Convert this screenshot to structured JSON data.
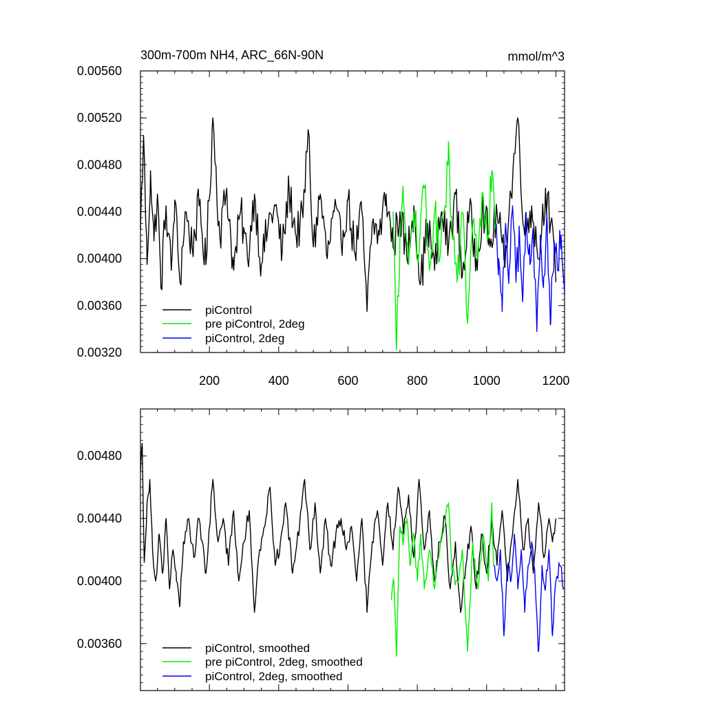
{
  "chart_data": [
    {
      "type": "line",
      "title": "300m-700m NH4, ARC_66N-90N",
      "units": "mmol/m^3",
      "xlim": [
        1,
        1225
      ],
      "ylim": [
        0.0032,
        0.0056
      ],
      "xticks": [
        "200",
        "400",
        "600",
        "800",
        "1000",
        "1200"
      ],
      "yticks": [
        "0.00560",
        "0.00520",
        "0.00480",
        "0.00440",
        "0.00400",
        "0.00360",
        "0.00320"
      ],
      "legend": [
        "piControl",
        "pre piControl, 2deg",
        "piControl, 2deg"
      ],
      "legend_position": "bottom-left",
      "series": [
        {
          "name": "piControl",
          "color": "#000000",
          "x_start": 1,
          "x_end": 1200,
          "points": [
            [
              1,
              0.00425
            ],
            [
              10,
              0.00505
            ],
            [
              20,
              0.00395
            ],
            [
              30,
              0.00475
            ],
            [
              40,
              0.00415
            ],
            [
              50,
              0.00455
            ],
            [
              60,
              0.00375
            ],
            [
              75,
              0.00445
            ],
            [
              90,
              0.0039
            ],
            [
              100,
              0.0045
            ],
            [
              115,
              0.0038
            ],
            [
              130,
              0.0044
            ],
            [
              150,
              0.0041
            ],
            [
              170,
              0.00445
            ],
            [
              190,
              0.00395
            ],
            [
              210,
              0.0052
            ],
            [
              230,
              0.0042
            ],
            [
              250,
              0.0046
            ],
            [
              270,
              0.0039
            ],
            [
              290,
              0.0044
            ],
            [
              310,
              0.004
            ],
            [
              330,
              0.00455
            ],
            [
              350,
              0.00395
            ],
            [
              370,
              0.0043
            ],
            [
              390,
              0.00445
            ],
            [
              410,
              0.00405
            ],
            [
              430,
              0.0046
            ],
            [
              450,
              0.0042
            ],
            [
              470,
              0.00435
            ],
            [
              485,
              0.0051
            ],
            [
              500,
              0.0041
            ],
            [
              520,
              0.00455
            ],
            [
              540,
              0.004
            ],
            [
              560,
              0.0044
            ],
            [
              580,
              0.00415
            ],
            [
              600,
              0.0045
            ],
            [
              620,
              0.00405
            ],
            [
              640,
              0.0044
            ],
            [
              655,
              0.00355
            ],
            [
              670,
              0.0043
            ],
            [
              690,
              0.0042
            ],
            [
              710,
              0.00455
            ],
            [
              730,
              0.0041
            ],
            [
              750,
              0.0044
            ],
            [
              770,
              0.004
            ],
            [
              790,
              0.00445
            ],
            [
              810,
              0.0038
            ],
            [
              830,
              0.0043
            ],
            [
              850,
              0.0039
            ],
            [
              870,
              0.0044
            ],
            [
              890,
              0.0041
            ],
            [
              910,
              0.00455
            ],
            [
              930,
              0.00385
            ],
            [
              950,
              0.0044
            ],
            [
              970,
              0.004
            ],
            [
              990,
              0.00445
            ],
            [
              1010,
              0.0041
            ],
            [
              1030,
              0.0044
            ],
            [
              1050,
              0.004
            ],
            [
              1070,
              0.00455
            ],
            [
              1090,
              0.0052
            ],
            [
              1110,
              0.0042
            ],
            [
              1130,
              0.00445
            ],
            [
              1150,
              0.004
            ],
            [
              1170,
              0.0046
            ],
            [
              1185,
              0.0043
            ],
            [
              1200,
              0.0038
            ]
          ]
        },
        {
          "name": "pre piControl, 2deg",
          "color": "#00ee00",
          "x_start": 730,
          "x_end": 1025,
          "points": [
            [
              730,
              0.0044
            ],
            [
              740,
              0.00322
            ],
            [
              750,
              0.0042
            ],
            [
              760,
              0.0045
            ],
            [
              775,
              0.00395
            ],
            [
              790,
              0.0044
            ],
            [
              805,
              0.00405
            ],
            [
              820,
              0.0046
            ],
            [
              835,
              0.0039
            ],
            [
              850,
              0.0044
            ],
            [
              865,
              0.004
            ],
            [
              880,
              0.00445
            ],
            [
              890,
              0.005
            ],
            [
              900,
              0.0042
            ],
            [
              915,
              0.0038
            ],
            [
              930,
              0.0044
            ],
            [
              945,
              0.00345
            ],
            [
              960,
              0.0043
            ],
            [
              975,
              0.004
            ],
            [
              990,
              0.00455
            ],
            [
              1005,
              0.0042
            ],
            [
              1015,
              0.00475
            ],
            [
              1025,
              0.0043
            ]
          ]
        },
        {
          "name": "piControl, 2deg",
          "color": "#0000ee",
          "x_start": 1025,
          "x_end": 1225,
          "points": [
            [
              1025,
              0.0043
            ],
            [
              1035,
              0.004
            ],
            [
              1045,
              0.00355
            ],
            [
              1055,
              0.0043
            ],
            [
              1065,
              0.0039
            ],
            [
              1075,
              0.00445
            ],
            [
              1085,
              0.0038
            ],
            [
              1095,
              0.0042
            ],
            [
              1105,
              0.0037
            ],
            [
              1115,
              0.0043
            ],
            [
              1125,
              0.00395
            ],
            [
              1135,
              0.00415
            ],
            [
              1145,
              0.00338
            ],
            [
              1155,
              0.0042
            ],
            [
              1165,
              0.00385
            ],
            [
              1175,
              0.0043
            ],
            [
              1185,
              0.00345
            ],
            [
              1195,
              0.00415
            ],
            [
              1205,
              0.0039
            ],
            [
              1215,
              0.0042
            ],
            [
              1225,
              0.0037
            ]
          ]
        }
      ]
    },
    {
      "type": "line",
      "xlim": [
        1,
        1225
      ],
      "ylim": [
        0.0033,
        0.0051
      ],
      "yticks": [
        "0.00480",
        "0.00440",
        "0.00400",
        "0.00360"
      ],
      "legend": [
        "piControl, smoothed",
        "pre piControl, 2deg, smoothed",
        "piControl, 2deg, smoothed"
      ],
      "legend_position": "bottom-left",
      "series": [
        {
          "name": "piControl, smoothed",
          "color": "#000000",
          "x_start": 1,
          "x_end": 1200,
          "points": [
            [
              1,
              0.0047
            ],
            [
              6,
              0.00488
            ],
            [
              12,
              0.00412
            ],
            [
              20,
              0.0045
            ],
            [
              28,
              0.00465
            ],
            [
              36,
              0.0042
            ],
            [
              45,
              0.004
            ],
            [
              55,
              0.0043
            ],
            [
              65,
              0.00405
            ],
            [
              75,
              0.0044
            ],
            [
              85,
              0.00395
            ],
            [
              95,
              0.0042
            ],
            [
              105,
              0.004
            ],
            [
              115,
              0.00385
            ],
            [
              125,
              0.00425
            ],
            [
              140,
              0.0044
            ],
            [
              155,
              0.00415
            ],
            [
              170,
              0.0044
            ],
            [
              190,
              0.00405
            ],
            [
              210,
              0.00465
            ],
            [
              225,
              0.00425
            ],
            [
              240,
              0.0044
            ],
            [
              255,
              0.0041
            ],
            [
              270,
              0.00445
            ],
            [
              285,
              0.004
            ],
            [
              300,
              0.00425
            ],
            [
              315,
              0.00445
            ],
            [
              330,
              0.0038
            ],
            [
              345,
              0.0042
            ],
            [
              360,
              0.00435
            ],
            [
              375,
              0.0046
            ],
            [
              390,
              0.0041
            ],
            [
              405,
              0.00425
            ],
            [
              420,
              0.0045
            ],
            [
              440,
              0.00405
            ],
            [
              460,
              0.00435
            ],
            [
              475,
              0.00465
            ],
            [
              490,
              0.0042
            ],
            [
              505,
              0.0045
            ],
            [
              520,
              0.00405
            ],
            [
              535,
              0.0044
            ],
            [
              550,
              0.0041
            ],
            [
              565,
              0.0043
            ],
            [
              580,
              0.0044
            ],
            [
              595,
              0.0042
            ],
            [
              610,
              0.00435
            ],
            [
              625,
              0.004
            ],
            [
              640,
              0.0044
            ],
            [
              655,
              0.0038
            ],
            [
              670,
              0.00425
            ],
            [
              685,
              0.00445
            ],
            [
              700,
              0.0041
            ],
            [
              715,
              0.0045
            ],
            [
              730,
              0.0042
            ],
            [
              745,
              0.0046
            ],
            [
              760,
              0.0043
            ],
            [
              775,
              0.00455
            ],
            [
              790,
              0.00415
            ],
            [
              805,
              0.00465
            ],
            [
              820,
              0.0042
            ],
            [
              835,
              0.00445
            ],
            [
              850,
              0.004
            ],
            [
              865,
              0.00425
            ],
            [
              880,
              0.0044
            ],
            [
              895,
              0.00395
            ],
            [
              910,
              0.00425
            ],
            [
              925,
              0.0038
            ],
            [
              940,
              0.0041
            ],
            [
              955,
              0.00435
            ],
            [
              970,
              0.00395
            ],
            [
              985,
              0.0043
            ],
            [
              1000,
              0.00405
            ],
            [
              1015,
              0.0044
            ],
            [
              1030,
              0.0041
            ],
            [
              1045,
              0.00445
            ],
            [
              1060,
              0.004
            ],
            [
              1075,
              0.0043
            ],
            [
              1090,
              0.00465
            ],
            [
              1105,
              0.0042
            ],
            [
              1120,
              0.0044
            ],
            [
              1135,
              0.00405
            ],
            [
              1150,
              0.0045
            ],
            [
              1165,
              0.00415
            ],
            [
              1180,
              0.0044
            ],
            [
              1190,
              0.00425
            ],
            [
              1200,
              0.0044
            ]
          ]
        },
        {
          "name": "pre piControl, 2deg, smoothed",
          "color": "#00ee00",
          "x_start": 725,
          "x_end": 1020,
          "points": [
            [
              725,
              0.00388
            ],
            [
              732,
              0.004
            ],
            [
              740,
              0.00352
            ],
            [
              750,
              0.00435
            ],
            [
              760,
              0.00425
            ],
            [
              770,
              0.0044
            ],
            [
              780,
              0.0041
            ],
            [
              790,
              0.0043
            ],
            [
              800,
              0.004
            ],
            [
              810,
              0.0043
            ],
            [
              820,
              0.00395
            ],
            [
              835,
              0.0042
            ],
            [
              850,
              0.00395
            ],
            [
              865,
              0.0042
            ],
            [
              880,
              0.00435
            ],
            [
              890,
              0.0045
            ],
            [
              900,
              0.00405
            ],
            [
              915,
              0.004
            ],
            [
              930,
              0.0042
            ],
            [
              945,
              0.00355
            ],
            [
              960,
              0.00425
            ],
            [
              975,
              0.00395
            ],
            [
              990,
              0.0043
            ],
            [
              1005,
              0.004
            ],
            [
              1015,
              0.0045
            ],
            [
              1020,
              0.0041
            ]
          ]
        },
        {
          "name": "piControl, 2deg, smoothed",
          "color": "#0000ee",
          "x_start": 1020,
          "x_end": 1225,
          "points": [
            [
              1020,
              0.0041
            ],
            [
              1030,
              0.004
            ],
            [
              1040,
              0.0042
            ],
            [
              1050,
              0.00365
            ],
            [
              1060,
              0.0041
            ],
            [
              1070,
              0.004
            ],
            [
              1080,
              0.0043
            ],
            [
              1090,
              0.00395
            ],
            [
              1100,
              0.0042
            ],
            [
              1110,
              0.0038
            ],
            [
              1120,
              0.0041
            ],
            [
              1130,
              0.00425
            ],
            [
              1140,
              0.004
            ],
            [
              1150,
              0.00355
            ],
            [
              1160,
              0.0041
            ],
            [
              1170,
              0.00395
            ],
            [
              1180,
              0.0042
            ],
            [
              1190,
              0.00365
            ],
            [
              1200,
              0.004
            ],
            [
              1210,
              0.0041
            ],
            [
              1225,
              0.00395
            ]
          ]
        }
      ]
    }
  ]
}
